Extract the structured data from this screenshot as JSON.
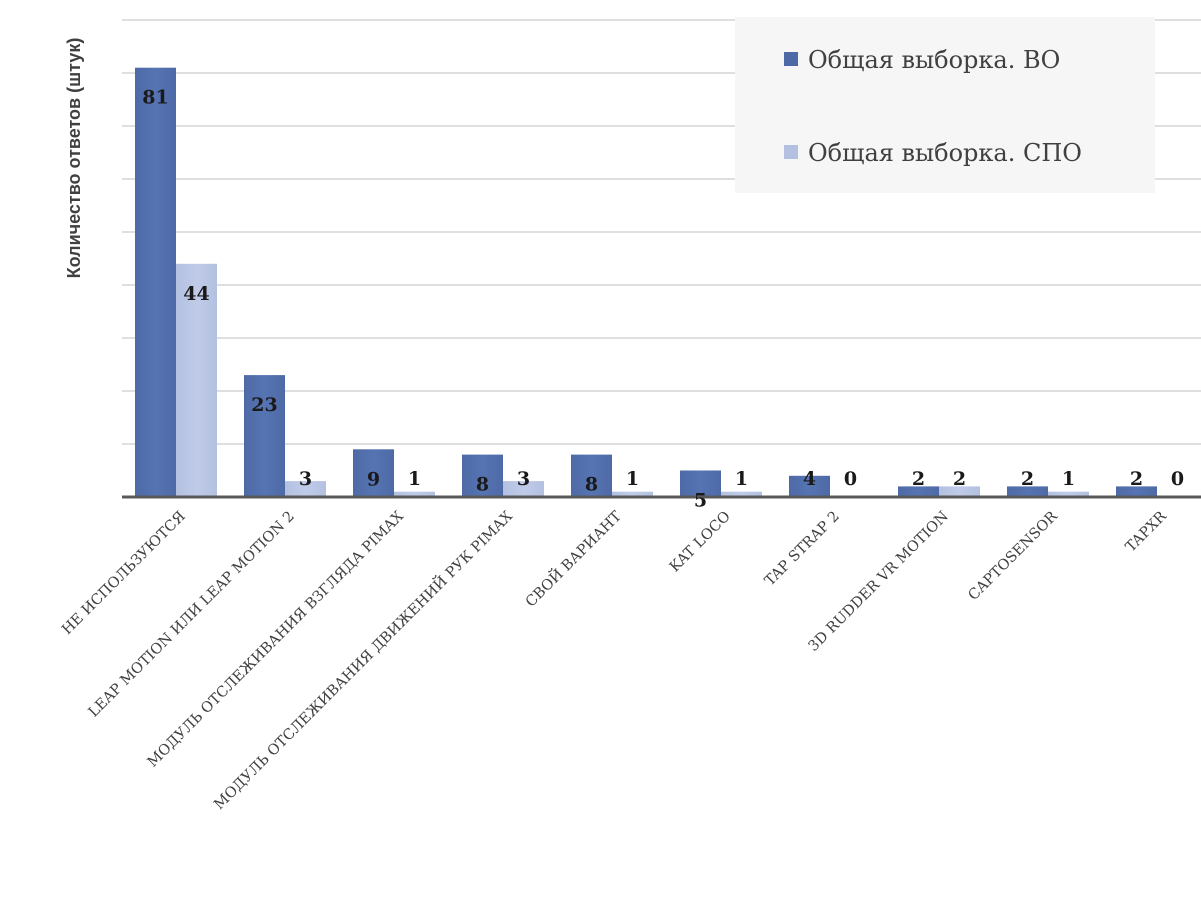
{
  "chart_data": {
    "type": "bar",
    "title": "",
    "xlabel": "",
    "ylabel": "Количество ответов (штук)",
    "ylim": [
      0,
      90
    ],
    "grid": true,
    "legend_position": "top-right",
    "categories": [
      "НЕ ИСПОЛЬЗУЮТСЯ",
      "LEAP MOTION ИЛИ LEAP MOTION 2",
      "МОДУЛЬ ОТСЛЕЖИВАНИЯ ВЗГЛЯДА PIMAX",
      "МОДУЛЬ ОТСЛЕЖИВАНИЯ ДВИЖЕНИЙ РУК PIMAX",
      "СВОЙ ВАРИАНТ",
      "KAT LOCO",
      "TAP STRAP 2",
      "3D RUDDER VR MOTION",
      "CAPTOSENSOR",
      "TAPXR"
    ],
    "series": [
      {
        "name": "Общая выборка. ВО",
        "color": "#4e6aa6",
        "values": [
          81,
          23,
          9,
          8,
          8,
          5,
          4,
          2,
          2,
          2
        ]
      },
      {
        "name": "Общая выборка. СПО",
        "color": "#b3c0e0",
        "values": [
          44,
          3,
          1,
          3,
          1,
          1,
          0,
          2,
          1,
          0
        ]
      }
    ],
    "colors": {
      "grid": "#bfbfbf",
      "axis": "#595959",
      "legend_box": "#f6f6f6"
    }
  }
}
